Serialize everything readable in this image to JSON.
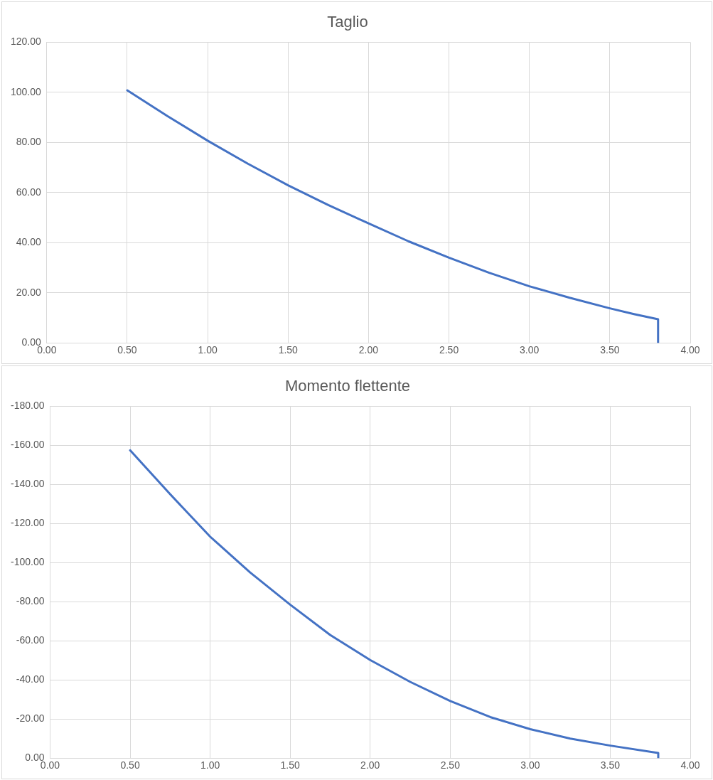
{
  "chart_data": [
    {
      "type": "line",
      "title": "Taglio",
      "x": [
        0.5,
        0.75,
        1.0,
        1.25,
        1.5,
        1.75,
        2.0,
        2.25,
        2.5,
        2.75,
        3.0,
        3.25,
        3.5,
        3.65,
        3.8,
        3.8
      ],
      "series": [
        {
          "color": "#4472c4",
          "values": [
            100.8,
            90.5,
            80.7,
            71.5,
            62.9,
            55,
            47.7,
            40.5,
            34,
            28,
            22.6,
            18,
            13.8,
            11.5,
            9.4,
            0
          ]
        }
      ],
      "xlim": [
        0,
        4
      ],
      "xticks": [
        {
          "value": 0,
          "label": "0.00"
        },
        {
          "value": 0.5,
          "label": "0.50"
        },
        {
          "value": 1,
          "label": "1.00"
        },
        {
          "value": 1.5,
          "label": "1.50"
        },
        {
          "value": 2,
          "label": "2.00"
        },
        {
          "value": 2.5,
          "label": "2.50"
        },
        {
          "value": 3,
          "label": "3.00"
        },
        {
          "value": 3.5,
          "label": "3.50"
        },
        {
          "value": 4,
          "label": "4.00"
        }
      ],
      "ylim": [
        0,
        120
      ],
      "yticks": [
        {
          "value": 0,
          "label": "0.00"
        },
        {
          "value": 20,
          "label": "20.00"
        },
        {
          "value": 40,
          "label": "40.00"
        },
        {
          "value": 60,
          "label": "60.00"
        },
        {
          "value": 80,
          "label": "80.00"
        },
        {
          "value": 100,
          "label": "100.00"
        },
        {
          "value": 120,
          "label": "120.00"
        }
      ],
      "grid": true,
      "legend": false,
      "marker": "none",
      "line_style": "solid"
    },
    {
      "type": "line",
      "title": "Momento flettente",
      "x": [
        0.5,
        0.75,
        1.0,
        1.25,
        1.5,
        1.75,
        2.0,
        2.25,
        2.5,
        2.75,
        3.0,
        3.25,
        3.5,
        3.8,
        3.8
      ],
      "series": [
        {
          "color": "#4472c4",
          "values": [
            -157.5,
            -135,
            -113.3,
            -95,
            -78.5,
            -63,
            -50.2,
            -39,
            -29.2,
            -21,
            -14.8,
            -10,
            -6.4,
            -2.6,
            0
          ]
        }
      ],
      "xlim": [
        0,
        4
      ],
      "xticks": [
        {
          "value": 0,
          "label": "0.00"
        },
        {
          "value": 0.5,
          "label": "0.50"
        },
        {
          "value": 1,
          "label": "1.00"
        },
        {
          "value": 1.5,
          "label": "1.50"
        },
        {
          "value": 2,
          "label": "2.00"
        },
        {
          "value": 2.5,
          "label": "2.50"
        },
        {
          "value": 3,
          "label": "3.00"
        },
        {
          "value": 3.5,
          "label": "3.50"
        },
        {
          "value": 4,
          "label": "4.00"
        }
      ],
      "ylim": [
        0,
        -180
      ],
      "yticks": [
        {
          "value": 0,
          "label": "0.00"
        },
        {
          "value": -20,
          "label": "-20.00"
        },
        {
          "value": -40,
          "label": "-40.00"
        },
        {
          "value": -60,
          "label": "-60.00"
        },
        {
          "value": -80,
          "label": "-80.00"
        },
        {
          "value": -100,
          "label": "-100.00"
        },
        {
          "value": -120,
          "label": "-120.00"
        },
        {
          "value": -140,
          "label": "-140.00"
        },
        {
          "value": -160,
          "label": "-160.00"
        },
        {
          "value": -180,
          "label": "-180.00"
        }
      ],
      "grid": true,
      "legend": false,
      "marker": "none",
      "line_style": "solid"
    }
  ]
}
